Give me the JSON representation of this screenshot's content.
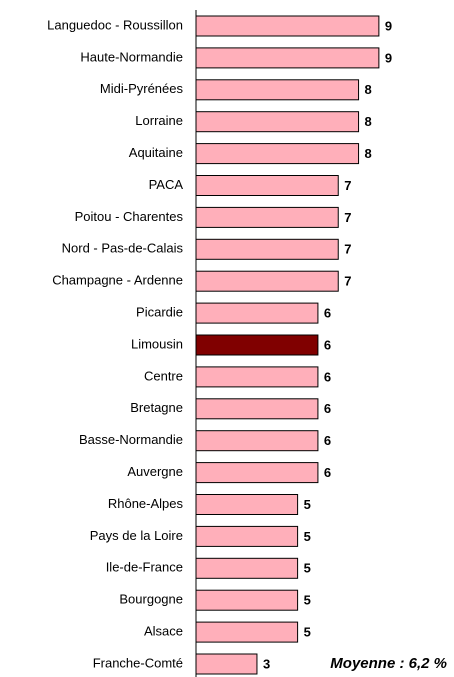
{
  "chart_data": {
    "type": "barh",
    "categories": [
      "Languedoc - Roussillon",
      "Haute-Normandie",
      "Midi-Pyrénées",
      "Lorraine",
      "Aquitaine",
      "PACA",
      "Poitou - Charentes",
      "Nord - Pas-de-Calais",
      "Champagne - Ardenne",
      "Picardie",
      "Limousin",
      "Centre",
      "Bretagne",
      "Basse-Normandie",
      "Auvergne",
      "Rhône-Alpes",
      "Pays de la Loire",
      "Ile-de-France",
      "Bourgogne",
      "Alsace",
      "Franche-Comté"
    ],
    "values": [
      9,
      9,
      8,
      8,
      8,
      7,
      7,
      7,
      7,
      6,
      6,
      6,
      6,
      6,
      6,
      5,
      5,
      5,
      5,
      5,
      3
    ],
    "colors": [
      "#ffafba",
      "#ffafba",
      "#ffafba",
      "#ffafba",
      "#ffafba",
      "#ffafba",
      "#ffafba",
      "#ffafba",
      "#ffafba",
      "#ffafba",
      "#800000",
      "#ffafba",
      "#ffafba",
      "#ffafba",
      "#ffafba",
      "#ffafba",
      "#ffafba",
      "#ffafba",
      "#ffafba",
      "#ffafba",
      "#ffafba"
    ],
    "xlim": [
      0,
      12.5
    ],
    "annotation": "Moyenne : 6,2 %"
  }
}
